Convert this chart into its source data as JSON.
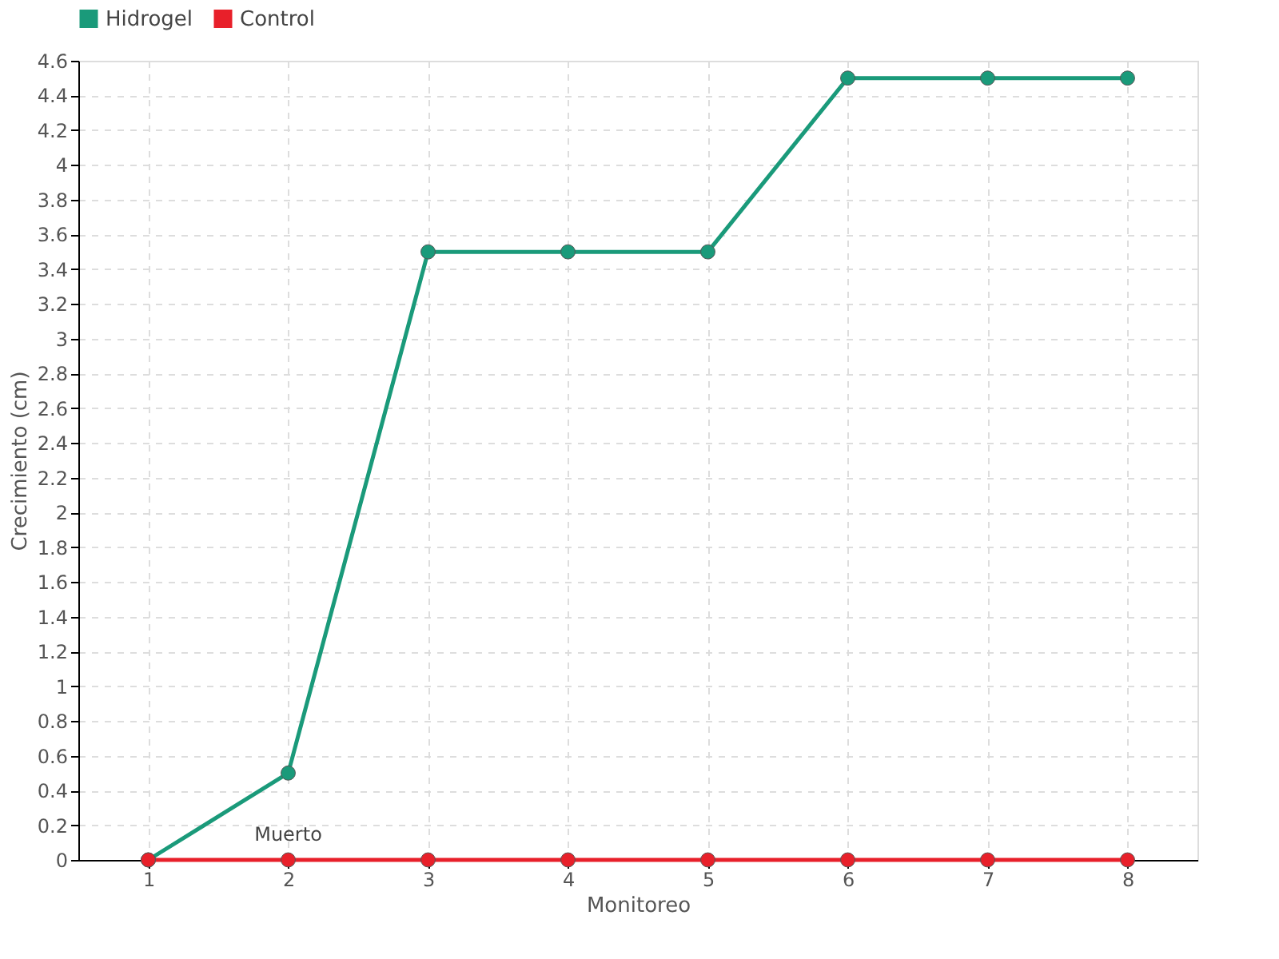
{
  "chart_data": {
    "type": "line",
    "xlabel": "Monitoreo",
    "ylabel": "Crecimiento (cm)",
    "categories": [
      "1",
      "2",
      "3",
      "4",
      "5",
      "6",
      "7",
      "8"
    ],
    "series": [
      {
        "name": "Hidrogel",
        "color": "#1a9a7a",
        "values": [
          0,
          0.5,
          3.5,
          3.5,
          3.5,
          4.5,
          4.5,
          4.5
        ]
      },
      {
        "name": "Control",
        "color": "#e8202a",
        "values": [
          0,
          0,
          0,
          0,
          0,
          0,
          0,
          0
        ]
      }
    ],
    "ylim": [
      0,
      4.6
    ],
    "yticks": [
      0,
      0.2,
      0.4,
      0.6,
      0.8,
      1,
      1.2,
      1.4,
      1.6,
      1.8,
      2,
      2.2,
      2.4,
      2.6,
      2.8,
      3,
      3.2,
      3.4,
      3.6,
      3.8,
      4,
      4.2,
      4.4,
      4.6
    ],
    "annotations": [
      {
        "text": "Muerto",
        "x": "2",
        "y": 0
      }
    ],
    "grid": true,
    "legend": "top left",
    "marker": "circle",
    "line_style": "solid"
  }
}
